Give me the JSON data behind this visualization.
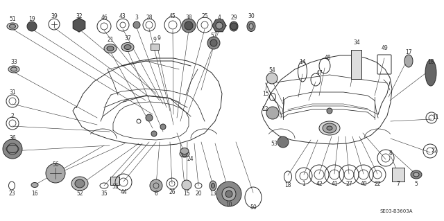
{
  "bg_color": "#ffffff",
  "diagram_color": "#2a2a2a",
  "part_number_code": "SE03-B3603A",
  "fig_width": 6.4,
  "fig_height": 3.19,
  "dpi": 100
}
